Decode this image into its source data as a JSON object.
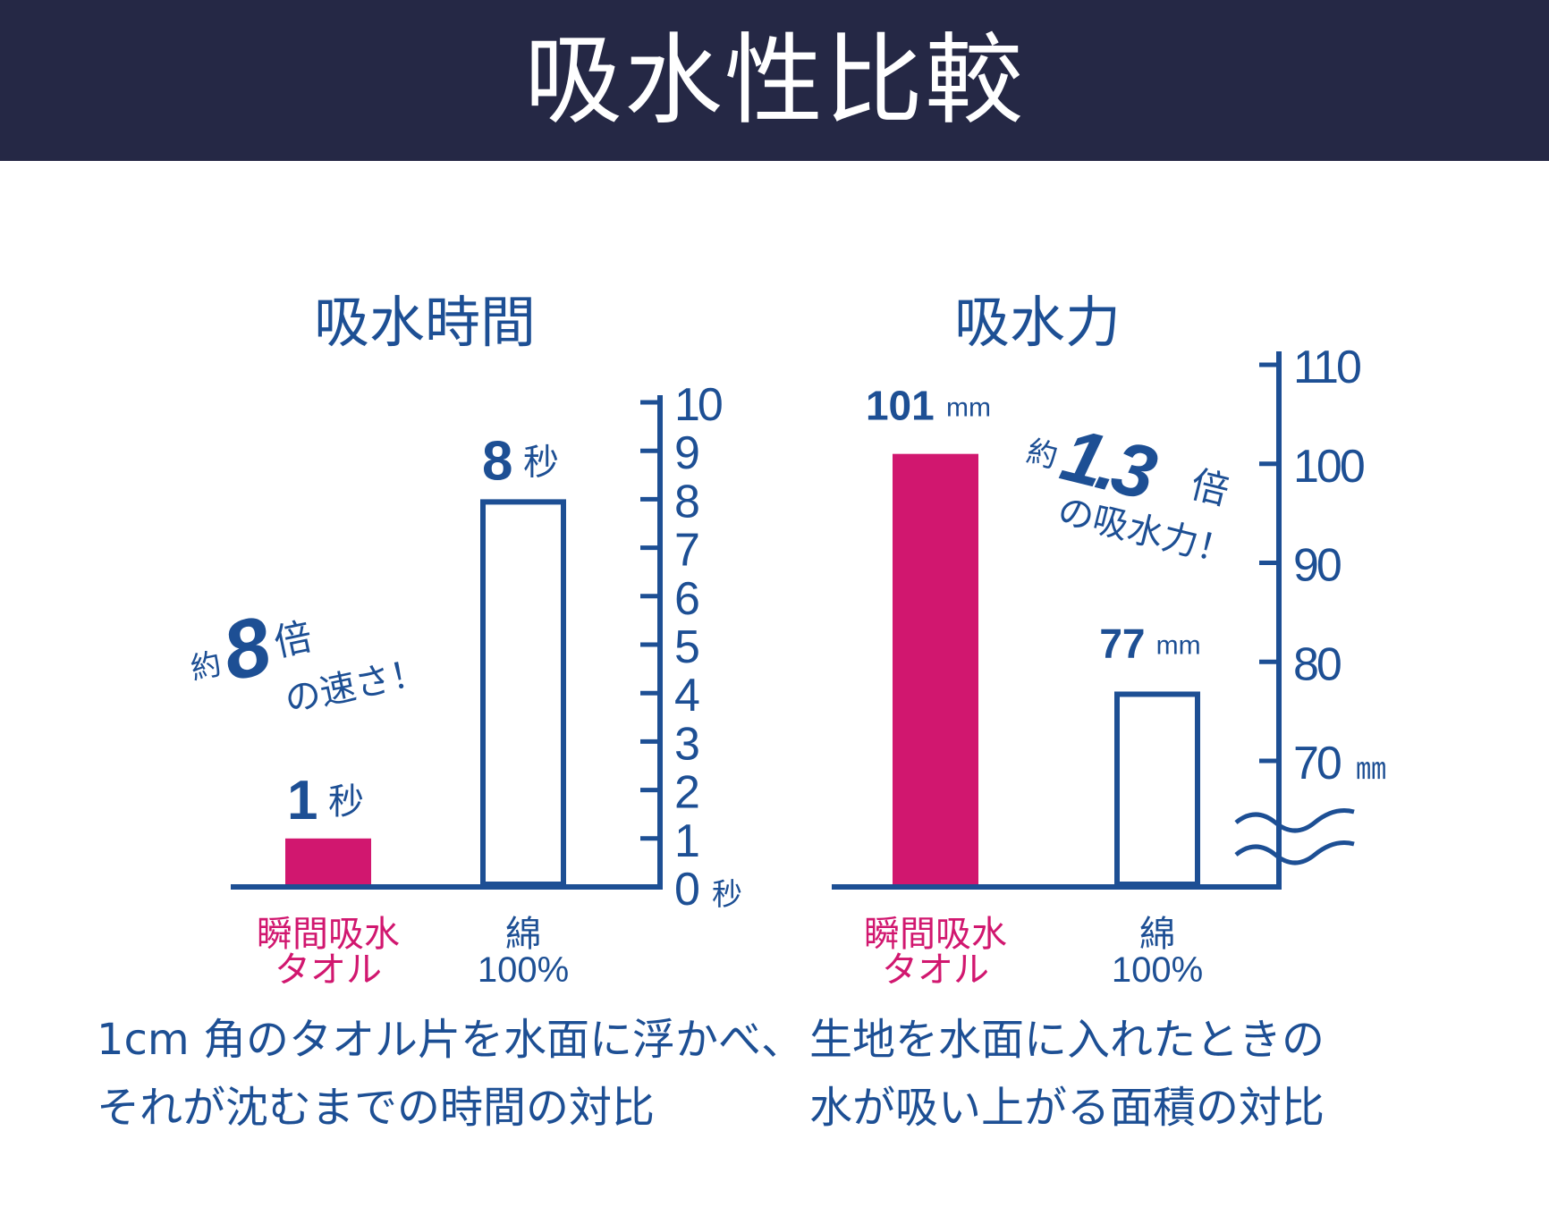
{
  "header": {
    "title": "吸水性比較"
  },
  "colors": {
    "header_bg": "#252845",
    "navy": "#1d4f94",
    "magenta": "#d1176f"
  },
  "charts": [
    {
      "title": "吸水時間",
      "caption": [
        "1cm 角のタオル片を水面に浮かべ、",
        "それが沈むまでの時間の対比"
      ],
      "callout": {
        "prefix": "約",
        "value": "8",
        "suffix": "倍",
        "text": "の速さ！"
      }
    },
    {
      "title": "吸水力",
      "caption": [
        "生地を水面に入れたときの",
        "水が吸い上がる面積の対比"
      ],
      "callout": {
        "prefix": "約",
        "value": "1.3",
        "suffix": "倍",
        "text": "の吸水力！"
      }
    }
  ],
  "chart_data": [
    {
      "type": "bar",
      "title": "吸水時間",
      "categories": [
        [
          "瞬間吸水",
          "タオル"
        ],
        [
          "綿",
          "100%"
        ]
      ],
      "values": [
        1,
        8
      ],
      "value_labels": [
        {
          "number": "1",
          "unit": "秒"
        },
        {
          "number": "8",
          "unit": "秒"
        }
      ],
      "bar_colors": [
        "#d1176f",
        "#ffffff"
      ],
      "label_colors": [
        "#d1176f",
        "#1d4f94"
      ],
      "ylim": [
        0,
        10
      ],
      "yticks": [
        "0",
        "1",
        "2",
        "3",
        "4",
        "5",
        "6",
        "7",
        "8",
        "9",
        "10"
      ],
      "y_unit": "秒",
      "axis_position": "right"
    },
    {
      "type": "bar",
      "title": "吸水力",
      "categories": [
        [
          "瞬間吸水",
          "タオル"
        ],
        [
          "綿",
          "100%"
        ]
      ],
      "values": [
        101,
        77
      ],
      "value_labels": [
        {
          "number": "101",
          "unit": "mm"
        },
        {
          "number": "77",
          "unit": "mm"
        }
      ],
      "bar_colors": [
        "#d1176f",
        "#ffffff"
      ],
      "label_colors": [
        "#d1176f",
        "#1d4f94"
      ],
      "ylim": [
        70,
        110
      ],
      "yticks": [
        "70",
        "80",
        "90",
        "100",
        "110"
      ],
      "y_unit": "㎜",
      "axis_break": true,
      "axis_position": "right"
    }
  ]
}
